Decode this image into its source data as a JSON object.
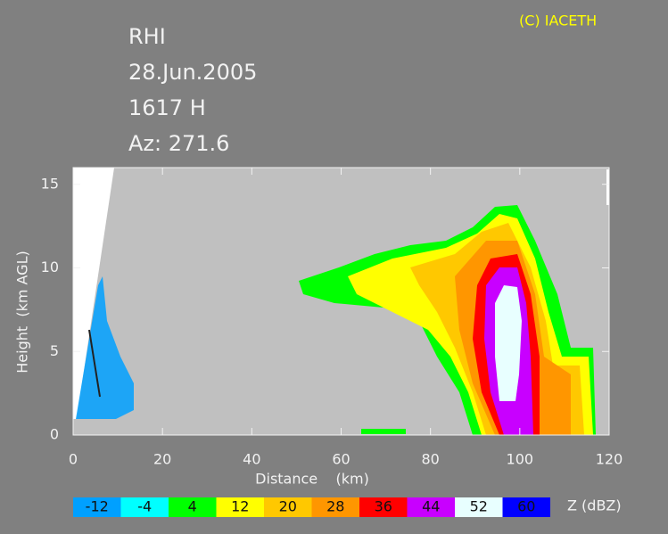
{
  "chart_data": {
    "type": "radar-rhi",
    "title": "RHI",
    "annotations": [
      "28.Jun.2005",
      "1617 H",
      "Az: 271.6"
    ],
    "credit": "(C) IACETH",
    "xlabel": "Distance    (km)",
    "ylabel": "Height  (km AGL)",
    "xlim": [
      0,
      120
    ],
    "xticks": [
      0,
      20,
      40,
      60,
      80,
      100,
      120
    ],
    "ylim": [
      0,
      16
    ],
    "yticks": [
      0,
      5,
      10,
      15
    ],
    "colorbar": {
      "label": "Z (dBZ)",
      "levels": [
        -12,
        -4,
        4,
        12,
        20,
        28,
        36,
        44,
        52,
        60
      ],
      "colors": [
        "#00a0ff",
        "#00ffff",
        "#00ff00",
        "#ffff00",
        "#ffc800",
        "#ff9600",
        "#ff0000",
        "#c800ff",
        "#e8ffff",
        "#0000ff"
      ]
    }
  }
}
